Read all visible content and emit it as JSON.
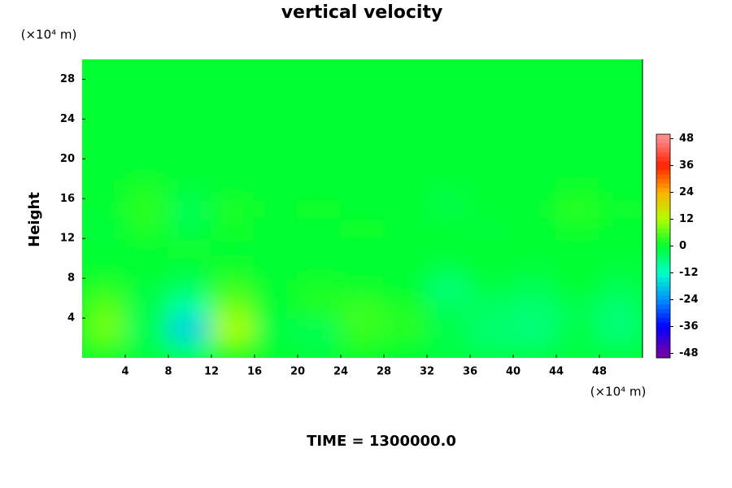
{
  "chart_data": {
    "type": "contour",
    "title": "vertical velocity",
    "ylabel": "Height",
    "y_unit": "(×10⁴ m)",
    "x_unit": "(×10⁴ m)",
    "footer": "TIME = 1300000.0",
    "x": [
      2,
      6,
      10,
      14,
      18,
      22,
      26,
      30,
      34,
      38,
      42,
      46,
      50
    ],
    "y": [
      1,
      3,
      5,
      7,
      9,
      11,
      13,
      15,
      17,
      19,
      21,
      23,
      25,
      27,
      29
    ],
    "z": [
      [
        4,
        -2,
        -8,
        6,
        0,
        -2,
        2,
        0,
        -2,
        -4,
        -4,
        -2,
        -3
      ],
      [
        8,
        -3,
        -18,
        12,
        -2,
        -3,
        4,
        3,
        -2,
        -5,
        -6,
        -2,
        -6
      ],
      [
        6,
        -2,
        -10,
        8,
        0,
        2,
        4,
        2,
        -3,
        -4,
        -5,
        -3,
        -5
      ],
      [
        3,
        -1,
        -4,
        4,
        0,
        2,
        1,
        0,
        -6,
        -2,
        -3,
        0,
        -3
      ],
      [
        0,
        0,
        -1,
        1,
        0,
        0,
        0,
        0,
        -2,
        0,
        -1,
        0,
        -1
      ],
      [
        0,
        0,
        1,
        0,
        0,
        0,
        0,
        0,
        0,
        0,
        0,
        0,
        0
      ],
      [
        -1,
        2,
        -2,
        1,
        0,
        0,
        1,
        0,
        0,
        -1,
        0,
        1,
        0
      ],
      [
        0,
        3,
        -3,
        2,
        0,
        1,
        0,
        0,
        -2,
        0,
        0,
        3,
        1
      ],
      [
        0,
        2,
        -1,
        0,
        0,
        0,
        0,
        0,
        -1,
        0,
        0,
        1,
        0
      ],
      [
        0,
        0,
        0,
        0,
        0,
        0,
        0,
        0,
        0,
        0,
        0,
        0,
        0
      ],
      [
        0,
        0,
        0,
        0,
        0,
        0,
        0,
        0,
        0,
        0,
        0,
        0,
        0
      ],
      [
        0,
        0,
        0,
        0,
        0,
        0,
        0,
        0,
        0,
        0,
        0,
        0,
        0
      ],
      [
        0,
        0,
        0,
        0,
        0,
        0,
        0,
        0,
        0,
        0,
        0,
        0,
        0
      ],
      [
        0,
        0,
        0,
        0,
        0,
        0,
        0,
        0,
        0,
        0,
        0,
        0,
        0
      ],
      [
        0,
        0,
        0,
        0,
        0,
        0,
        0,
        0,
        0,
        0,
        0,
        0,
        0
      ]
    ],
    "xlim": [
      0,
      52
    ],
    "ylim": [
      0,
      30
    ],
    "xticks": [
      4,
      8,
      12,
      16,
      20,
      24,
      28,
      32,
      36,
      40,
      44,
      48
    ],
    "yticks": [
      4,
      8,
      12,
      16,
      20,
      24,
      28
    ],
    "clim": [
      -50,
      50
    ],
    "cticks": [
      -48,
      -36,
      -24,
      -12,
      0,
      12,
      24,
      36,
      48
    ],
    "colorscale": [
      [
        -48,
        "#7000a8"
      ],
      [
        -36,
        "#0000ff"
      ],
      [
        -24,
        "#0090ff"
      ],
      [
        -12,
        "#00ffc8"
      ],
      [
        0,
        "#00ff30"
      ],
      [
        12,
        "#b0ff00"
      ],
      [
        24,
        "#ffb000"
      ],
      [
        36,
        "#ff2000"
      ],
      [
        48,
        "#ff8a8a"
      ]
    ]
  }
}
